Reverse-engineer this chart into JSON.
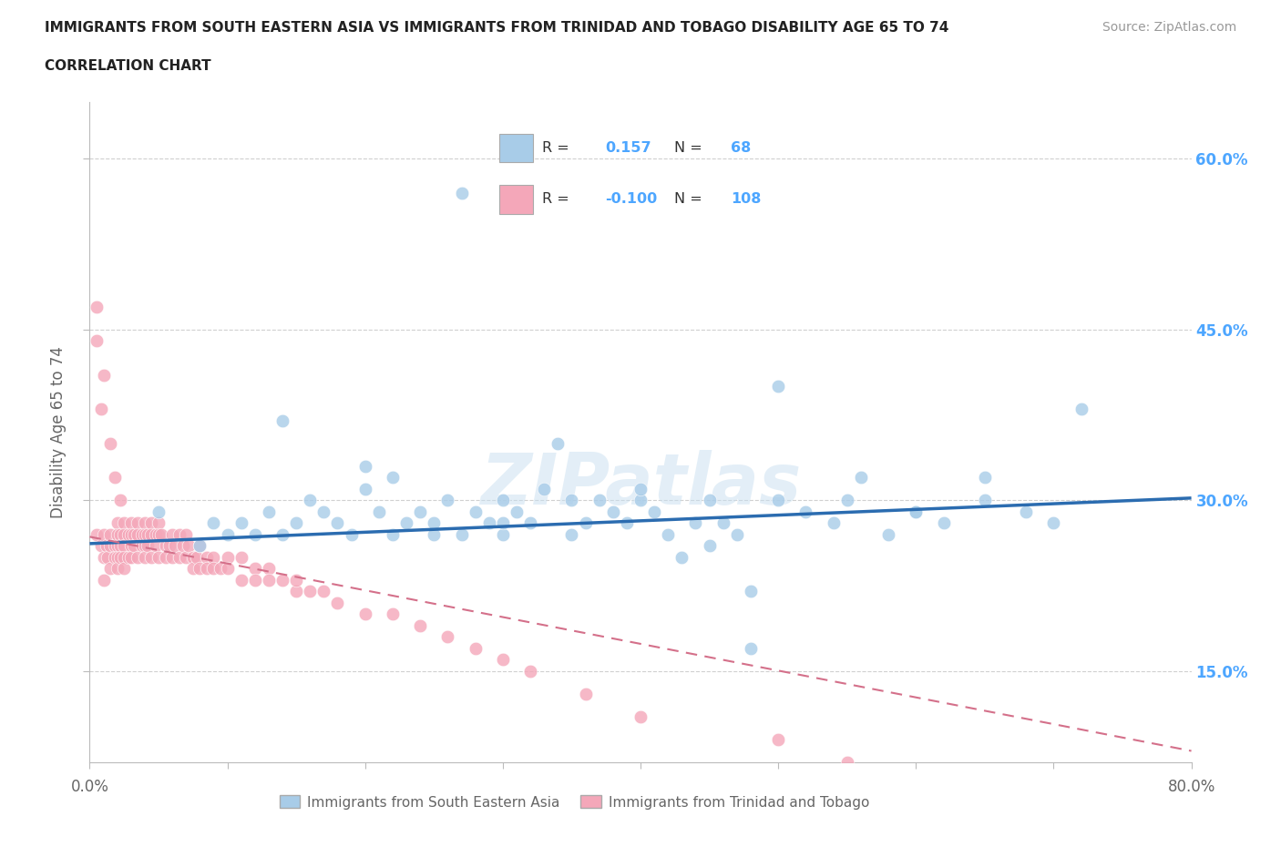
{
  "title_line1": "IMMIGRANTS FROM SOUTH EASTERN ASIA VS IMMIGRANTS FROM TRINIDAD AND TOBAGO DISABILITY AGE 65 TO 74",
  "title_line2": "CORRELATION CHART",
  "source_text": "Source: ZipAtlas.com",
  "ylabel": "Disability Age 65 to 74",
  "xlim": [
    0.0,
    0.8
  ],
  "ylim": [
    0.07,
    0.65
  ],
  "ytick_positions": [
    0.15,
    0.3,
    0.45,
    0.6
  ],
  "ytick_labels": [
    "15.0%",
    "30.0%",
    "45.0%",
    "60.0%"
  ],
  "R_blue": 0.157,
  "N_blue": 68,
  "R_pink": -0.1,
  "N_pink": 108,
  "blue_color": "#a8cce8",
  "pink_color": "#f4a7b9",
  "blue_line_color": "#2b6cb0",
  "pink_line_color": "#d4708a",
  "legend_label_blue": "Immigrants from South Eastern Asia",
  "legend_label_pink": "Immigrants from Trinidad and Tobago",
  "watermark": "ZIPatlas",
  "background_color": "#ffffff",
  "grid_color": "#d0d0d0",
  "axis_color": "#bbbbbb",
  "title_color": "#222222",
  "label_color": "#666666",
  "right_ytick_color": "#4da6ff",
  "blue_x": [
    0.05,
    0.08,
    0.09,
    0.1,
    0.11,
    0.12,
    0.13,
    0.14,
    0.15,
    0.16,
    0.17,
    0.18,
    0.19,
    0.2,
    0.21,
    0.22,
    0.22,
    0.23,
    0.24,
    0.25,
    0.26,
    0.27,
    0.28,
    0.29,
    0.3,
    0.3,
    0.31,
    0.32,
    0.33,
    0.34,
    0.35,
    0.36,
    0.37,
    0.38,
    0.39,
    0.4,
    0.41,
    0.42,
    0.43,
    0.44,
    0.45,
    0.46,
    0.47,
    0.48,
    0.5,
    0.52,
    0.54,
    0.56,
    0.58,
    0.6,
    0.62,
    0.65,
    0.68,
    0.7,
    0.27,
    0.72,
    0.5,
    0.14,
    0.2,
    0.3,
    0.25,
    0.35,
    0.4,
    0.45,
    0.55,
    0.6,
    0.65,
    0.48
  ],
  "blue_y": [
    0.29,
    0.26,
    0.28,
    0.27,
    0.28,
    0.27,
    0.29,
    0.27,
    0.28,
    0.3,
    0.29,
    0.28,
    0.27,
    0.31,
    0.29,
    0.27,
    0.32,
    0.28,
    0.29,
    0.28,
    0.3,
    0.27,
    0.29,
    0.28,
    0.3,
    0.27,
    0.29,
    0.28,
    0.31,
    0.35,
    0.27,
    0.28,
    0.3,
    0.29,
    0.28,
    0.3,
    0.29,
    0.27,
    0.25,
    0.28,
    0.3,
    0.28,
    0.27,
    0.17,
    0.3,
    0.29,
    0.28,
    0.32,
    0.27,
    0.29,
    0.28,
    0.3,
    0.29,
    0.28,
    0.57,
    0.38,
    0.4,
    0.37,
    0.33,
    0.28,
    0.27,
    0.3,
    0.31,
    0.26,
    0.3,
    0.29,
    0.32,
    0.22
  ],
  "pink_x": [
    0.005,
    0.008,
    0.01,
    0.01,
    0.01,
    0.012,
    0.013,
    0.015,
    0.015,
    0.015,
    0.018,
    0.018,
    0.02,
    0.02,
    0.02,
    0.02,
    0.02,
    0.022,
    0.022,
    0.022,
    0.025,
    0.025,
    0.025,
    0.025,
    0.025,
    0.028,
    0.028,
    0.03,
    0.03,
    0.03,
    0.03,
    0.032,
    0.032,
    0.035,
    0.035,
    0.035,
    0.038,
    0.038,
    0.04,
    0.04,
    0.04,
    0.04,
    0.042,
    0.042,
    0.045,
    0.045,
    0.045,
    0.048,
    0.048,
    0.05,
    0.05,
    0.05,
    0.052,
    0.055,
    0.055,
    0.058,
    0.06,
    0.06,
    0.062,
    0.065,
    0.065,
    0.068,
    0.07,
    0.07,
    0.072,
    0.075,
    0.075,
    0.078,
    0.08,
    0.08,
    0.085,
    0.085,
    0.09,
    0.09,
    0.095,
    0.1,
    0.1,
    0.11,
    0.11,
    0.12,
    0.12,
    0.13,
    0.13,
    0.14,
    0.15,
    0.15,
    0.16,
    0.17,
    0.18,
    0.2,
    0.22,
    0.24,
    0.26,
    0.28,
    0.3,
    0.32,
    0.36,
    0.4,
    0.5,
    0.55,
    0.6,
    0.005,
    0.01,
    0.005,
    0.008,
    0.015,
    0.018,
    0.022
  ],
  "pink_y": [
    0.27,
    0.26,
    0.27,
    0.25,
    0.23,
    0.26,
    0.25,
    0.27,
    0.26,
    0.24,
    0.26,
    0.25,
    0.28,
    0.27,
    0.26,
    0.25,
    0.24,
    0.27,
    0.26,
    0.25,
    0.28,
    0.27,
    0.26,
    0.25,
    0.24,
    0.27,
    0.25,
    0.28,
    0.27,
    0.26,
    0.25,
    0.27,
    0.26,
    0.28,
    0.27,
    0.25,
    0.27,
    0.26,
    0.28,
    0.27,
    0.26,
    0.25,
    0.27,
    0.26,
    0.28,
    0.27,
    0.25,
    0.27,
    0.26,
    0.28,
    0.27,
    0.25,
    0.27,
    0.26,
    0.25,
    0.26,
    0.27,
    0.25,
    0.26,
    0.27,
    0.25,
    0.26,
    0.27,
    0.25,
    0.26,
    0.25,
    0.24,
    0.25,
    0.26,
    0.24,
    0.25,
    0.24,
    0.25,
    0.24,
    0.24,
    0.25,
    0.24,
    0.25,
    0.23,
    0.24,
    0.23,
    0.24,
    0.23,
    0.23,
    0.22,
    0.23,
    0.22,
    0.22,
    0.21,
    0.2,
    0.2,
    0.19,
    0.18,
    0.17,
    0.16,
    0.15,
    0.13,
    0.11,
    0.09,
    0.07,
    0.06,
    0.44,
    0.41,
    0.47,
    0.38,
    0.35,
    0.32,
    0.3
  ],
  "blue_trend_x0": 0.0,
  "blue_trend_y0": 0.262,
  "blue_trend_x1": 0.8,
  "blue_trend_y1": 0.302,
  "pink_trend_x0": 0.0,
  "pink_trend_y0": 0.268,
  "pink_trend_x1": 0.8,
  "pink_trend_y1": 0.08
}
